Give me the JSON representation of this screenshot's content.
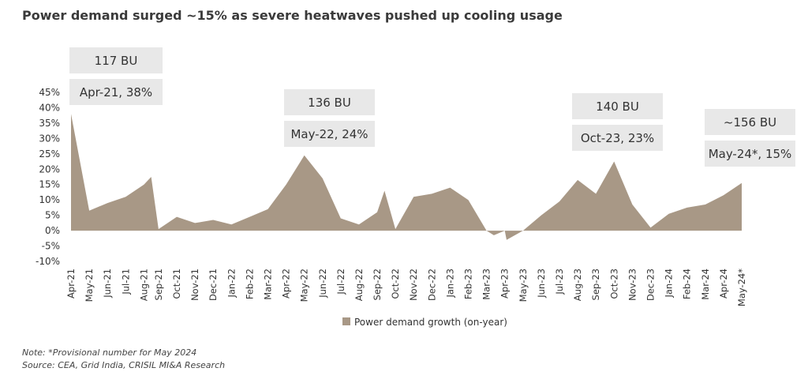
{
  "title": "Power demand surged ~15% as severe heatwaves pushed up cooling usage",
  "note": "Note: *Provisional number for May 2024",
  "source": "Source: CEA, Grid India, CRISIL MI&A Research",
  "colors": {
    "area": "#a89886",
    "annotation_box": "#e8e8e8",
    "text": "#333333"
  },
  "chart_data": {
    "type": "area",
    "ylim": [
      -10,
      45
    ],
    "y_ticks": [
      "-10%",
      "-5%",
      "0%",
      "5%",
      "10%",
      "15%",
      "20%",
      "25%",
      "30%",
      "35%",
      "40%",
      "45%"
    ],
    "y_tick_values": [
      -10,
      -5,
      0,
      5,
      10,
      15,
      20,
      25,
      30,
      35,
      40,
      45
    ],
    "categories": [
      "Apr-21",
      "May-21",
      "Jun-21",
      "Jul-21",
      "Aug-21",
      "Sep-21",
      "Oct-21",
      "Nov-21",
      "Dec-21",
      "Jan-22",
      "Feb-22",
      "Mar-22",
      "Apr-22",
      "May-22",
      "Jun-22",
      "Jul-22",
      "Aug-22",
      "Sep-22",
      "Oct-22",
      "Nov-22",
      "Dec-22",
      "Jan-23",
      "Feb-23",
      "Mar-23",
      "Apr-23",
      "May-23",
      "Jun-23",
      "Jul-23",
      "Aug-23",
      "Sep-23",
      "Oct-23",
      "Nov-23",
      "Dec-23",
      "Jan-24",
      "Feb-24",
      "Mar-24",
      "Apr-24",
      "May-24*"
    ],
    "x_positions": [
      0,
      1,
      2,
      3,
      4,
      4.8,
      5.8,
      6.8,
      7.8,
      8.8,
      9.8,
      10.8,
      11.8,
      12.8,
      13.8,
      14.8,
      15.8,
      16.8,
      17.8,
      18.8,
      19.8,
      20.8,
      21.8,
      22.8,
      23.8,
      24.8,
      25.8,
      26.8,
      27.8,
      28.8,
      29.8,
      30.8,
      31.8,
      32.8,
      33.8,
      34.8,
      35.8,
      36.8
    ],
    "extra_points": [
      {
        "x": 4.4,
        "y": 17.5
      },
      {
        "x": 17.2,
        "y": 13
      },
      {
        "x": 23.2,
        "y": -1.5
      },
      {
        "x": 23.9,
        "y": -3
      }
    ],
    "series": [
      {
        "name": "Power demand growth (on-year)",
        "values": [
          38,
          6.5,
          9,
          11,
          15,
          0.5,
          4.5,
          2.5,
          3.5,
          2,
          4.5,
          7,
          15,
          24.5,
          17,
          4,
          2,
          6,
          0.5,
          11,
          12,
          14,
          10,
          0,
          0,
          0,
          5,
          9.5,
          16.5,
          12,
          22.5,
          8.5,
          1,
          5.5,
          7.5,
          8.5,
          11.5,
          15.5
        ]
      }
    ],
    "legend": {
      "label": "Power demand growth (on-year)",
      "position": "bottom"
    },
    "annotations": [
      {
        "top": "117 BU",
        "bottom": "Apr-21, 38%",
        "anchor": "Apr-21"
      },
      {
        "top": "136 BU",
        "bottom": "May-22, 24%",
        "anchor": "May-22"
      },
      {
        "top": "140 BU",
        "bottom": "Oct-23, 23%",
        "anchor": "Oct-23"
      },
      {
        "top": "~156 BU",
        "bottom": "May-24*, 15%",
        "anchor": "May-24*"
      }
    ]
  }
}
